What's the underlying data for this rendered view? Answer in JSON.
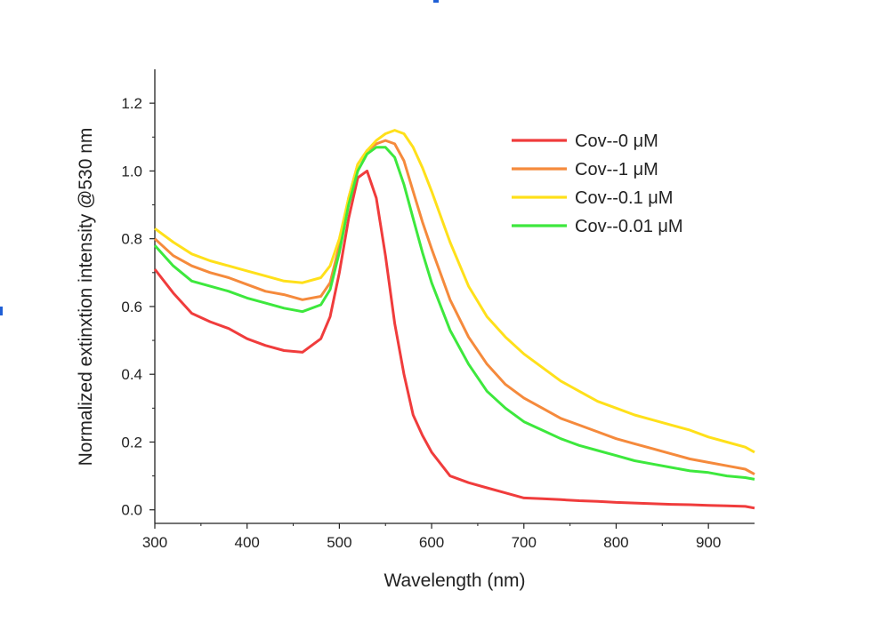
{
  "chart_data": {
    "type": "line",
    "title": "",
    "xlabel": "Wavelength (nm)",
    "ylabel": "Normalized extinxtion intensity @530 nm",
    "xlim": [
      300,
      950
    ],
    "ylim": [
      -0.04,
      1.3
    ],
    "xticks": [
      300,
      400,
      500,
      600,
      700,
      800,
      900
    ],
    "yticks": [
      0.0,
      0.2,
      0.4,
      0.6,
      0.8,
      1.0,
      1.2
    ],
    "xtick_labels": [
      "300",
      "400",
      "500",
      "600",
      "700",
      "800",
      "900"
    ],
    "ytick_labels": [
      "0.0",
      "0.2",
      "0.4",
      "0.6",
      "0.8",
      "1.0",
      "1.2"
    ],
    "grid": false,
    "legend_position": "top-right",
    "series": [
      {
        "name": "Cov--0 μM",
        "color": "#f03c3c",
        "x": [
          300,
          320,
          340,
          360,
          380,
          400,
          420,
          440,
          460,
          480,
          490,
          500,
          510,
          520,
          530,
          540,
          550,
          560,
          570,
          580,
          590,
          600,
          620,
          640,
          660,
          680,
          700,
          720,
          740,
          760,
          780,
          800,
          820,
          840,
          860,
          880,
          900,
          920,
          940,
          950
        ],
        "y": [
          0.71,
          0.64,
          0.58,
          0.555,
          0.535,
          0.505,
          0.485,
          0.47,
          0.465,
          0.505,
          0.57,
          0.7,
          0.86,
          0.98,
          1.0,
          0.92,
          0.75,
          0.55,
          0.4,
          0.28,
          0.22,
          0.17,
          0.1,
          0.08,
          0.065,
          0.05,
          0.035,
          0.033,
          0.03,
          0.027,
          0.025,
          0.022,
          0.02,
          0.018,
          0.016,
          0.015,
          0.013,
          0.012,
          0.01,
          0.005
        ]
      },
      {
        "name": "Cov--1 μM",
        "color": "#f58a3c",
        "x": [
          300,
          320,
          340,
          360,
          380,
          400,
          420,
          440,
          460,
          480,
          490,
          500,
          510,
          520,
          530,
          540,
          550,
          560,
          570,
          580,
          590,
          600,
          620,
          640,
          660,
          680,
          700,
          720,
          740,
          760,
          780,
          800,
          820,
          840,
          860,
          880,
          900,
          920,
          940,
          950
        ],
        "y": [
          0.8,
          0.75,
          0.72,
          0.7,
          0.685,
          0.665,
          0.645,
          0.635,
          0.62,
          0.63,
          0.67,
          0.78,
          0.92,
          1.02,
          1.06,
          1.08,
          1.09,
          1.08,
          1.03,
          0.94,
          0.85,
          0.77,
          0.62,
          0.51,
          0.43,
          0.37,
          0.33,
          0.3,
          0.27,
          0.25,
          0.23,
          0.21,
          0.195,
          0.18,
          0.165,
          0.15,
          0.14,
          0.13,
          0.12,
          0.105
        ]
      },
      {
        "name": "Cov--0.1 μM",
        "color": "#ffe01a",
        "x": [
          300,
          320,
          340,
          360,
          380,
          400,
          420,
          440,
          460,
          480,
          490,
          500,
          510,
          520,
          530,
          540,
          550,
          560,
          570,
          580,
          590,
          600,
          620,
          640,
          660,
          680,
          700,
          720,
          740,
          760,
          780,
          800,
          820,
          840,
          860,
          880,
          900,
          920,
          940,
          950
        ],
        "y": [
          0.83,
          0.79,
          0.755,
          0.735,
          0.72,
          0.705,
          0.69,
          0.675,
          0.67,
          0.685,
          0.72,
          0.8,
          0.92,
          1.02,
          1.06,
          1.09,
          1.11,
          1.12,
          1.11,
          1.07,
          1.01,
          0.94,
          0.79,
          0.66,
          0.57,
          0.51,
          0.46,
          0.42,
          0.38,
          0.35,
          0.32,
          0.3,
          0.28,
          0.265,
          0.25,
          0.235,
          0.215,
          0.2,
          0.185,
          0.17
        ]
      },
      {
        "name": "Cov--0.01 μM",
        "color": "#3de83d",
        "x": [
          300,
          320,
          340,
          360,
          380,
          400,
          420,
          440,
          460,
          480,
          490,
          500,
          510,
          520,
          530,
          540,
          550,
          560,
          570,
          580,
          590,
          600,
          620,
          640,
          660,
          680,
          700,
          720,
          740,
          760,
          780,
          800,
          820,
          840,
          860,
          880,
          900,
          920,
          940,
          950
        ],
        "y": [
          0.78,
          0.72,
          0.675,
          0.66,
          0.645,
          0.625,
          0.61,
          0.595,
          0.585,
          0.605,
          0.65,
          0.76,
          0.9,
          1.0,
          1.05,
          1.07,
          1.07,
          1.04,
          0.96,
          0.86,
          0.76,
          0.67,
          0.53,
          0.43,
          0.35,
          0.3,
          0.26,
          0.235,
          0.21,
          0.19,
          0.175,
          0.16,
          0.145,
          0.135,
          0.125,
          0.115,
          0.11,
          0.1,
          0.095,
          0.09
        ]
      }
    ]
  }
}
